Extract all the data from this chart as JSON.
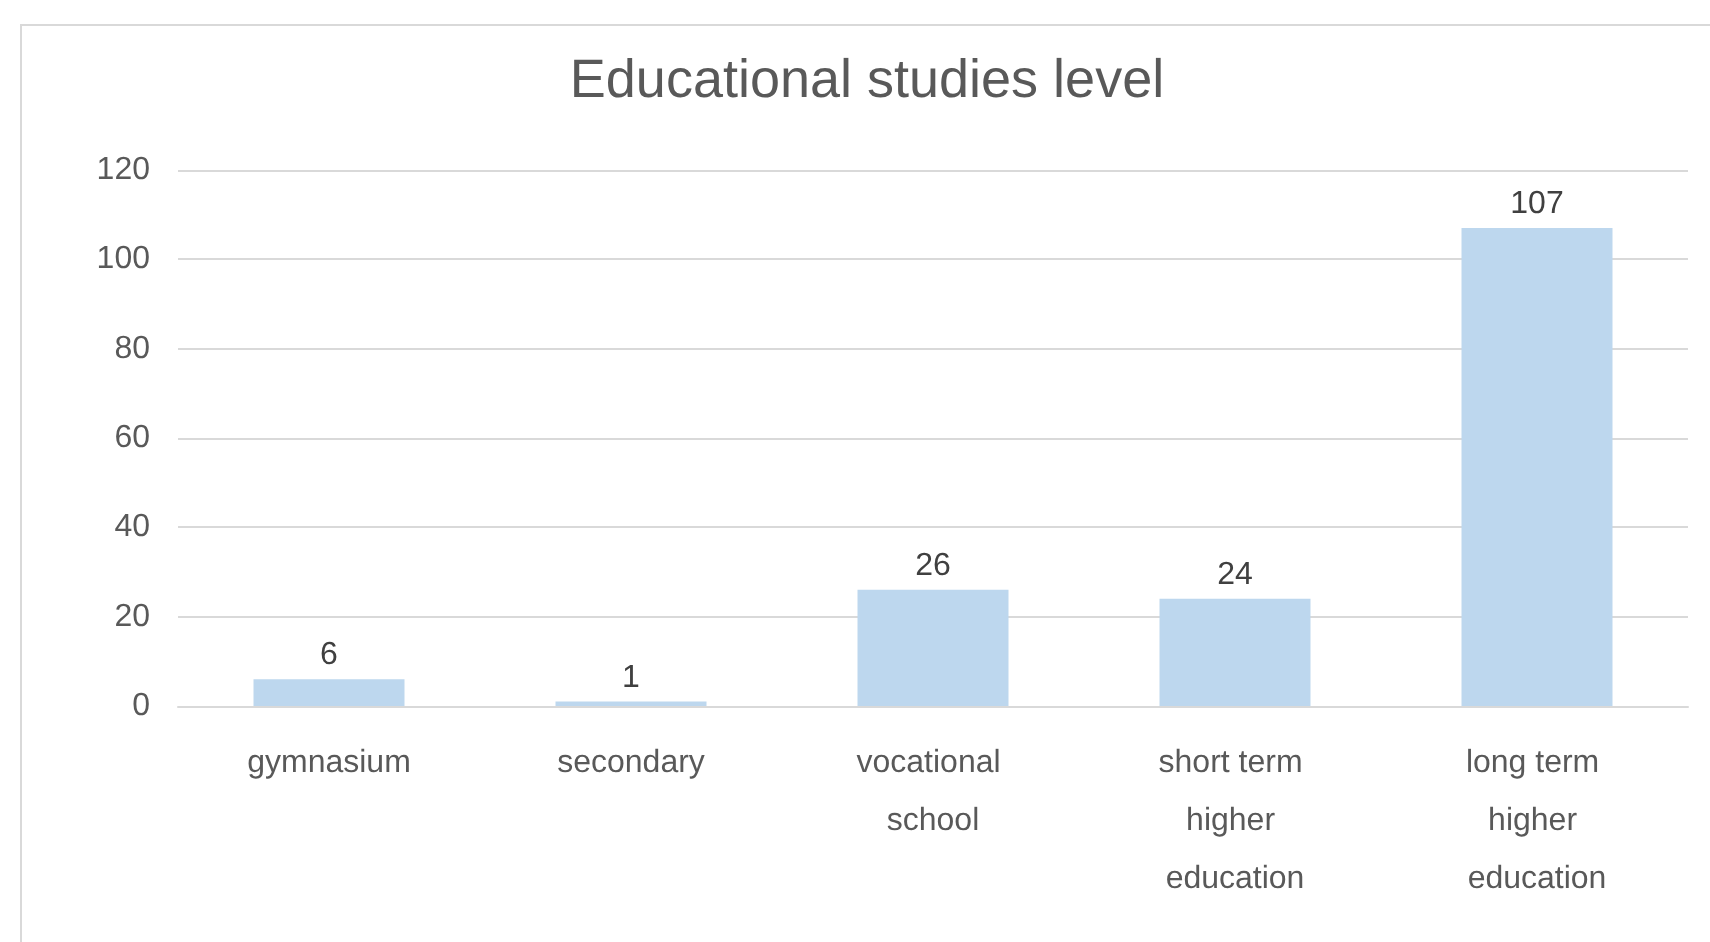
{
  "chart_data": {
    "type": "bar",
    "title": "Educational studies level",
    "categories": [
      "gymnasium",
      "secondary",
      "vocational school",
      "short term higher education",
      "long term higher education"
    ],
    "values": [
      6,
      1,
      26,
      24,
      107
    ],
    "color": "#bdd7ee",
    "ylim": [
      0,
      120
    ],
    "yticks": [
      0,
      20,
      40,
      60,
      80,
      100,
      120
    ],
    "grid": "y",
    "data_labels": true
  }
}
